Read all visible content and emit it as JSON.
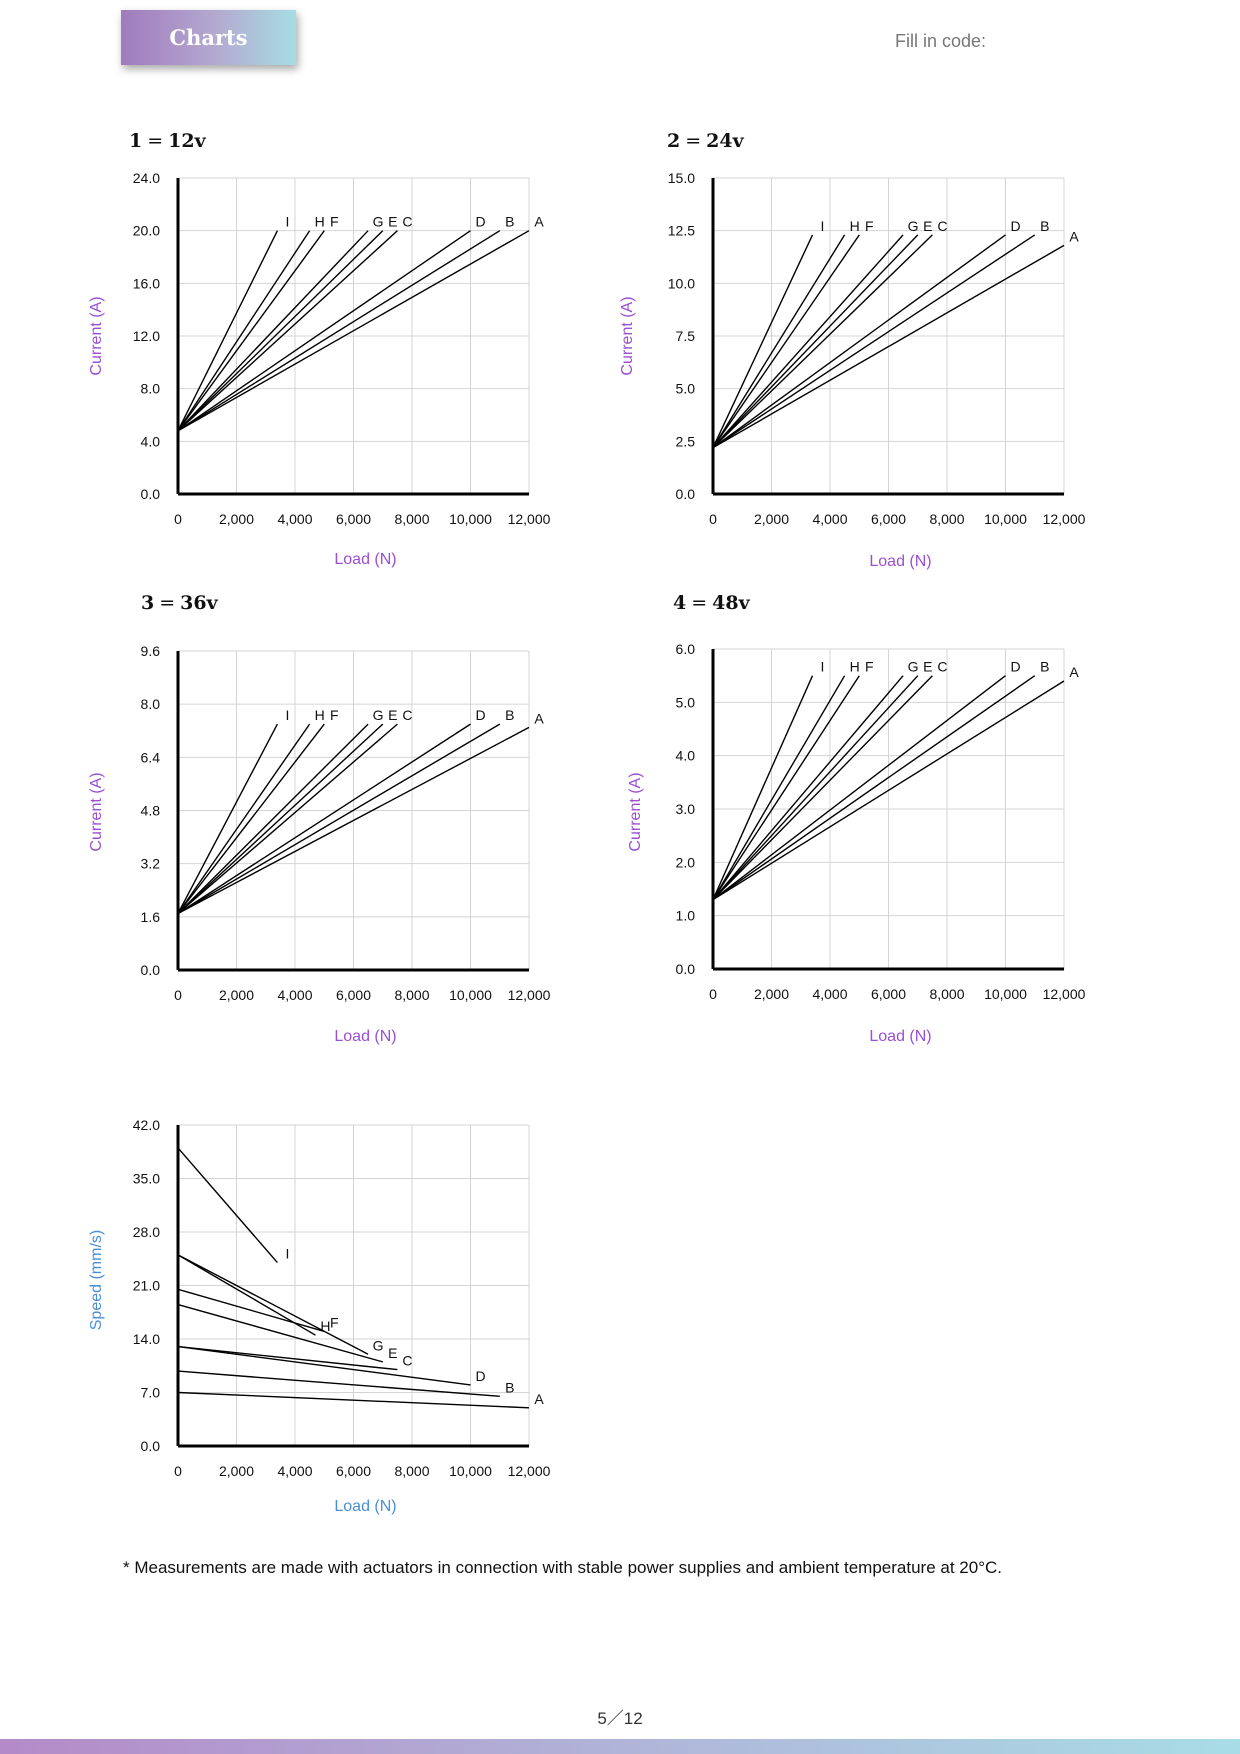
{
  "header": {
    "title": "Charts",
    "fill_in_code": "Fill in code:"
  },
  "footnote": "* Measurements are made with actuators in connection with stable power supplies and ambient temperature at 20°C.",
  "page_number": "5／12",
  "colors": {
    "current_label": "#9b4fd4",
    "speed_label": "#4a8fd6",
    "header_start": "#a07bbd",
    "header_end": "#a6dde3"
  },
  "chart_data": [
    {
      "type": "line",
      "title_number": "1",
      "title_eq": "=",
      "title_voltage": "12v",
      "xlabel": "Load (N)",
      "ylabel": "Current (A)",
      "xlim": [
        0,
        12000
      ],
      "ylim": [
        0,
        24
      ],
      "xticks": [
        "0",
        "2,000",
        "4,000",
        "6,000",
        "8,000",
        "10,000",
        "12,000"
      ],
      "xtick_values": [
        0,
        2000,
        4000,
        6000,
        8000,
        10000,
        12000
      ],
      "yticks": [
        "0.0",
        "4.0",
        "8.0",
        "12.0",
        "16.0",
        "20.0",
        "24.0"
      ],
      "ytick_values": [
        0,
        4,
        8,
        12,
        16,
        20,
        24
      ],
      "grid": true,
      "series": [
        {
          "name": "I",
          "x": [
            0,
            3400
          ],
          "y": [
            4.8,
            20.0
          ]
        },
        {
          "name": "H",
          "x": [
            0,
            4500
          ],
          "y": [
            4.8,
            20.0
          ]
        },
        {
          "name": "F",
          "x": [
            0,
            5000
          ],
          "y": [
            4.8,
            20.0
          ]
        },
        {
          "name": "G",
          "x": [
            0,
            6500
          ],
          "y": [
            4.8,
            20.0
          ]
        },
        {
          "name": "E",
          "x": [
            0,
            7000
          ],
          "y": [
            4.8,
            20.0
          ]
        },
        {
          "name": "C",
          "x": [
            0,
            7500
          ],
          "y": [
            4.8,
            20.0
          ]
        },
        {
          "name": "D",
          "x": [
            0,
            10000
          ],
          "y": [
            4.8,
            20.0
          ]
        },
        {
          "name": "B",
          "x": [
            0,
            11000
          ],
          "y": [
            4.8,
            20.0
          ]
        },
        {
          "name": "A",
          "x": [
            0,
            12000
          ],
          "y": [
            4.8,
            20.0
          ]
        }
      ]
    },
    {
      "type": "line",
      "title_number": "2",
      "title_eq": "=",
      "title_voltage": "24v",
      "xlabel": "Load (N)",
      "ylabel": "Current (A)",
      "xlim": [
        0,
        12000
      ],
      "ylim": [
        0,
        15
      ],
      "xticks": [
        "0",
        "2,000",
        "4,000",
        "6,000",
        "8,000",
        "10,000",
        "12,000"
      ],
      "xtick_values": [
        0,
        2000,
        4000,
        6000,
        8000,
        10000,
        12000
      ],
      "yticks": [
        "0.0",
        "2.5",
        "5.0",
        "7.5",
        "10.0",
        "12.5",
        "15.0"
      ],
      "ytick_values": [
        0,
        2.5,
        5,
        7.5,
        10,
        12.5,
        15
      ],
      "grid": true,
      "series": [
        {
          "name": "I",
          "x": [
            0,
            3400
          ],
          "y": [
            2.2,
            12.3
          ]
        },
        {
          "name": "H",
          "x": [
            0,
            4500
          ],
          "y": [
            2.2,
            12.3
          ]
        },
        {
          "name": "F",
          "x": [
            0,
            5000
          ],
          "y": [
            2.2,
            12.3
          ]
        },
        {
          "name": "G",
          "x": [
            0,
            6500
          ],
          "y": [
            2.2,
            12.3
          ]
        },
        {
          "name": "E",
          "x": [
            0,
            7000
          ],
          "y": [
            2.2,
            12.3
          ]
        },
        {
          "name": "C",
          "x": [
            0,
            7500
          ],
          "y": [
            2.2,
            12.3
          ]
        },
        {
          "name": "D",
          "x": [
            0,
            10000
          ],
          "y": [
            2.2,
            12.3
          ]
        },
        {
          "name": "B",
          "x": [
            0,
            11000
          ],
          "y": [
            2.2,
            12.3
          ]
        },
        {
          "name": "A",
          "x": [
            0,
            12000
          ],
          "y": [
            2.2,
            11.8
          ]
        }
      ]
    },
    {
      "type": "line",
      "title_number": "3",
      "title_eq": "=",
      "title_voltage": "36v",
      "xlabel": "Load (N)",
      "ylabel": "Current (A)",
      "xlim": [
        0,
        12000
      ],
      "ylim": [
        0,
        9.6
      ],
      "xticks": [
        "0",
        "2,000",
        "4,000",
        "6,000",
        "8,000",
        "10,000",
        "12,000"
      ],
      "xtick_values": [
        0,
        2000,
        4000,
        6000,
        8000,
        10000,
        12000
      ],
      "yticks": [
        "0.0",
        "1.6",
        "3.2",
        "4.8",
        "6.4",
        "8.0",
        "9.6"
      ],
      "ytick_values": [
        0,
        1.6,
        3.2,
        4.8,
        6.4,
        8.0,
        9.6
      ],
      "grid": true,
      "series": [
        {
          "name": "I",
          "x": [
            0,
            3400
          ],
          "y": [
            1.7,
            7.4
          ]
        },
        {
          "name": "H",
          "x": [
            0,
            4500
          ],
          "y": [
            1.7,
            7.4
          ]
        },
        {
          "name": "F",
          "x": [
            0,
            5000
          ],
          "y": [
            1.7,
            7.4
          ]
        },
        {
          "name": "G",
          "x": [
            0,
            6500
          ],
          "y": [
            1.7,
            7.4
          ]
        },
        {
          "name": "E",
          "x": [
            0,
            7000
          ],
          "y": [
            1.7,
            7.4
          ]
        },
        {
          "name": "C",
          "x": [
            0,
            7500
          ],
          "y": [
            1.7,
            7.4
          ]
        },
        {
          "name": "D",
          "x": [
            0,
            10000
          ],
          "y": [
            1.7,
            7.4
          ]
        },
        {
          "name": "B",
          "x": [
            0,
            11000
          ],
          "y": [
            1.7,
            7.4
          ]
        },
        {
          "name": "A",
          "x": [
            0,
            12000
          ],
          "y": [
            1.7,
            7.3
          ]
        }
      ]
    },
    {
      "type": "line",
      "title_number": "4",
      "title_eq": "=",
      "title_voltage": "48v",
      "xlabel": "Load (N)",
      "ylabel": "Current (A)",
      "xlim": [
        0,
        12000
      ],
      "ylim": [
        0,
        6
      ],
      "xticks": [
        "0",
        "2,000",
        "4,000",
        "6,000",
        "8,000",
        "10,000",
        "12,000"
      ],
      "xtick_values": [
        0,
        2000,
        4000,
        6000,
        8000,
        10000,
        12000
      ],
      "yticks": [
        "0.0",
        "1.0",
        "2.0",
        "3.0",
        "4.0",
        "5.0",
        "6.0"
      ],
      "ytick_values": [
        0,
        1,
        2,
        3,
        4,
        5,
        6
      ],
      "grid": true,
      "series": [
        {
          "name": "I",
          "x": [
            0,
            3400
          ],
          "y": [
            1.3,
            5.5
          ]
        },
        {
          "name": "H",
          "x": [
            0,
            4500
          ],
          "y": [
            1.3,
            5.5
          ]
        },
        {
          "name": "F",
          "x": [
            0,
            5000
          ],
          "y": [
            1.3,
            5.5
          ]
        },
        {
          "name": "G",
          "x": [
            0,
            6500
          ],
          "y": [
            1.3,
            5.5
          ]
        },
        {
          "name": "E",
          "x": [
            0,
            7000
          ],
          "y": [
            1.3,
            5.5
          ]
        },
        {
          "name": "C",
          "x": [
            0,
            7500
          ],
          "y": [
            1.3,
            5.5
          ]
        },
        {
          "name": "D",
          "x": [
            0,
            10000
          ],
          "y": [
            1.3,
            5.5
          ]
        },
        {
          "name": "B",
          "x": [
            0,
            11000
          ],
          "y": [
            1.3,
            5.5
          ]
        },
        {
          "name": "A",
          "x": [
            0,
            12000
          ],
          "y": [
            1.3,
            5.4
          ]
        }
      ]
    },
    {
      "type": "line",
      "xlabel": "Load (N)",
      "ylabel": "Speed (mm/s)",
      "xlim": [
        0,
        12000
      ],
      "ylim": [
        0,
        42
      ],
      "xticks": [
        "0",
        "2,000",
        "4,000",
        "6,000",
        "8,000",
        "10,000",
        "12,000"
      ],
      "xtick_values": [
        0,
        2000,
        4000,
        6000,
        8000,
        10000,
        12000
      ],
      "yticks": [
        "0.0",
        "7.0",
        "14.0",
        "21.0",
        "28.0",
        "35.0",
        "42.0"
      ],
      "ytick_values": [
        0,
        7,
        14,
        21,
        28,
        35,
        42
      ],
      "grid": true,
      "series": [
        {
          "name": "I",
          "x": [
            0,
            3400
          ],
          "y": [
            39.0,
            24.0
          ]
        },
        {
          "name": "H",
          "x": [
            0,
            4700
          ],
          "y": [
            25.0,
            14.5
          ]
        },
        {
          "name": "F",
          "x": [
            0,
            5000
          ],
          "y": [
            20.5,
            15.0
          ]
        },
        {
          "name": "G",
          "x": [
            0,
            6500
          ],
          "y": [
            25.0,
            12.0
          ]
        },
        {
          "name": "E",
          "x": [
            0,
            7000
          ],
          "y": [
            18.5,
            11.0
          ]
        },
        {
          "name": "C",
          "x": [
            0,
            7500
          ],
          "y": [
            13.0,
            10.0
          ]
        },
        {
          "name": "D",
          "x": [
            0,
            10000
          ],
          "y": [
            13.0,
            8.0
          ]
        },
        {
          "name": "B",
          "x": [
            0,
            11000
          ],
          "y": [
            9.8,
            6.5
          ]
        },
        {
          "name": "A",
          "x": [
            0,
            12000
          ],
          "y": [
            7.0,
            5.0
          ]
        }
      ]
    }
  ]
}
